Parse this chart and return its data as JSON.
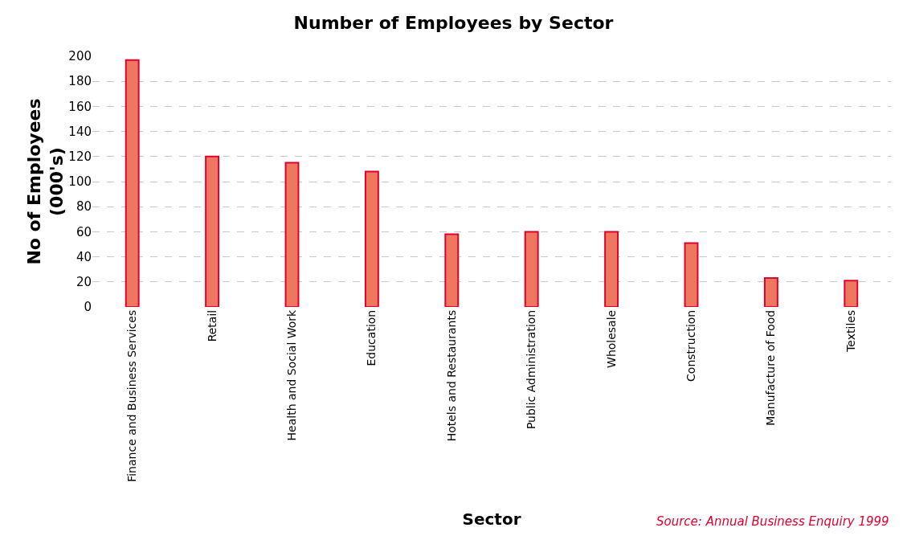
{
  "chart_data": {
    "type": "bar",
    "title": "Number of Employees by Sector",
    "xlabel": "Sector",
    "ylabel": "No of Employees\n(000's)",
    "categories": [
      "Finance and Business Services",
      "Retail",
      "Health and Social Work",
      "Education",
      "Hotels and Restaurants",
      "Public Administration",
      "Wholesale",
      "Construction",
      "Manufacture of Food",
      "Textiles"
    ],
    "values": [
      197,
      120,
      115,
      108,
      58,
      60,
      60,
      51,
      23,
      21
    ],
    "color": "#ee7760",
    "ylim": [
      0,
      200
    ],
    "yticks": [
      0,
      20,
      40,
      60,
      80,
      100,
      120,
      140,
      160,
      180,
      200
    ],
    "grid": "y",
    "annotations": [
      "Source: Annual Business Enquiry 1999"
    ]
  }
}
